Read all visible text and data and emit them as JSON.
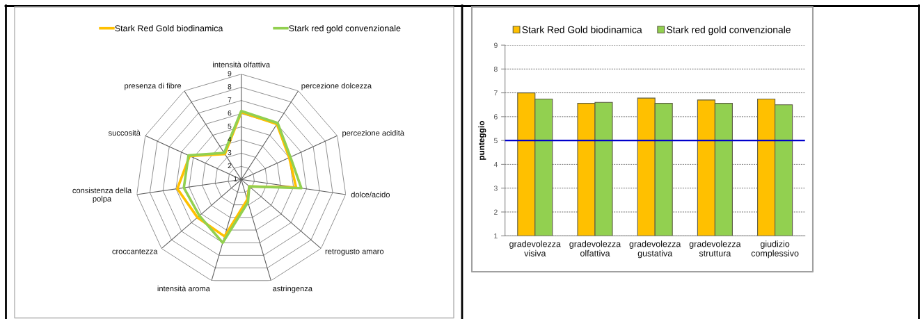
{
  "chart_data": [
    {
      "type": "radar",
      "categories": [
        "intensità olfattiva",
        "percezione dolcezza",
        "percezione acidità",
        "dolce/acido",
        "retrogusto amaro",
        "astringenza",
        "intensità aroma",
        "croccantezza",
        "consistenza della\npolpa",
        "succosità",
        "presenza di fibre"
      ],
      "series": [
        {
          "name": "Stark Red Gold biodinamica",
          "color": "#ffc000",
          "values": [
            6.1,
            6.0,
            5.0,
            5.2,
            1.8,
            2.6,
            5.5,
            5.4,
            5.9,
            5.3,
            3.3
          ]
        },
        {
          "name": "Stark red gold convenzionale",
          "color": "#92d050",
          "values": [
            6.2,
            6.1,
            5.1,
            5.6,
            1.8,
            2.8,
            6.0,
            5.2,
            5.4,
            5.4,
            3.4
          ]
        }
      ],
      "ylim": [
        1,
        9
      ],
      "yticks": [
        1,
        2,
        3,
        4,
        5,
        6,
        7,
        8,
        9
      ],
      "grid": true,
      "legend": "top"
    },
    {
      "type": "bar",
      "categories": [
        "gradevolezza\nvisiva",
        "gradevolezza\nolfattiva",
        "gradevolezza\ngustativa",
        "gradevolezza\nstruttura",
        "giudizio\ncomplessivo"
      ],
      "series": [
        {
          "name": "Stark Red Gold biodinamica",
          "color": "#ffc000",
          "values": [
            7.0,
            6.56,
            6.78,
            6.7,
            6.74
          ]
        },
        {
          "name": "Stark red gold convenzionale",
          "color": "#92d050",
          "values": [
            6.74,
            6.6,
            6.56,
            6.56,
            6.5
          ]
        }
      ],
      "ylabel": "punteggio",
      "ylim": [
        1,
        9
      ],
      "yticks": [
        1,
        2,
        3,
        4,
        5,
        6,
        7,
        8,
        9
      ],
      "ref_lines": [
        {
          "axis": "y",
          "value": 5,
          "color": "#0000cc"
        }
      ],
      "grid": "y",
      "legend": "top"
    }
  ]
}
